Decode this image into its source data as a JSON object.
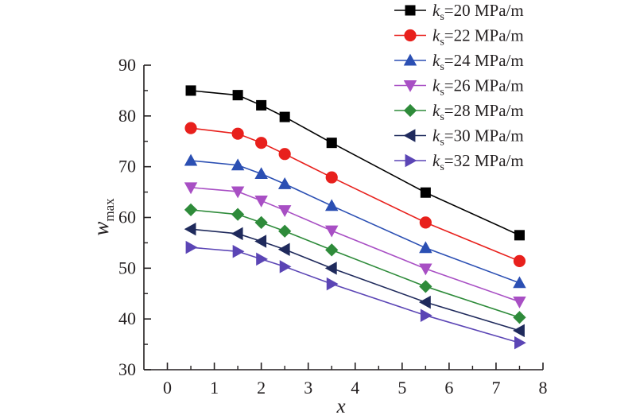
{
  "chart_data": {
    "type": "line",
    "xlabel": {
      "main": "x"
    },
    "ylabel": {
      "main": "w",
      "sub": "max"
    },
    "xlim": [
      -0.5,
      8
    ],
    "ylim": [
      30,
      90
    ],
    "xticks": [
      0,
      1,
      2,
      3,
      4,
      5,
      6,
      7,
      8
    ],
    "yticks": [
      30,
      40,
      50,
      60,
      70,
      80,
      90
    ],
    "grid": false,
    "legend_position": "top-right",
    "x": [
      0.5,
      1.5,
      2,
      2.5,
      3.5,
      5.5,
      7.5
    ],
    "series": [
      {
        "name": {
          "var": "k",
          "sub": "s",
          "rest": "=20 MPa/m"
        },
        "color": "#000000",
        "marker": "square",
        "values": [
          85.0,
          84.1,
          82.1,
          79.8,
          74.7,
          64.9,
          56.5
        ]
      },
      {
        "name": {
          "var": "k",
          "sub": "s",
          "rest": "=22 MPa/m"
        },
        "color": "#e8201c",
        "marker": "circle",
        "values": [
          77.6,
          76.5,
          74.7,
          72.5,
          67.9,
          59.0,
          51.4
        ]
      },
      {
        "name": {
          "var": "k",
          "sub": "s",
          "rest": "=24 MPa/m"
        },
        "color": "#2b4fb3",
        "marker": "triangle-up",
        "values": [
          71.2,
          70.3,
          68.6,
          66.6,
          62.3,
          54.0,
          47.1
        ]
      },
      {
        "name": {
          "var": "k",
          "sub": "s",
          "rest": "=26 MPa/m"
        },
        "color": "#a84fc4",
        "marker": "triangle-down",
        "values": [
          65.9,
          65.1,
          63.3,
          61.4,
          57.4,
          49.9,
          43.4
        ]
      },
      {
        "name": {
          "var": "k",
          "sub": "s",
          "rest": "=28 MPa/m"
        },
        "color": "#2e8b3a",
        "marker": "diamond",
        "values": [
          61.5,
          60.6,
          59.0,
          57.3,
          53.6,
          46.4,
          40.3
        ]
      },
      {
        "name": {
          "var": "k",
          "sub": "s",
          "rest": "=30 MPa/m"
        },
        "color": "#1f2a5c",
        "marker": "triangle-left",
        "values": [
          57.7,
          56.8,
          55.3,
          53.7,
          50.0,
          43.3,
          37.7
        ]
      },
      {
        "name": {
          "var": "k",
          "sub": "s",
          "rest": "=32 MPa/m"
        },
        "color": "#5b45b5",
        "marker": "triangle-right",
        "values": [
          54.1,
          53.3,
          51.8,
          50.3,
          46.9,
          40.7,
          35.3
        ]
      }
    ]
  }
}
